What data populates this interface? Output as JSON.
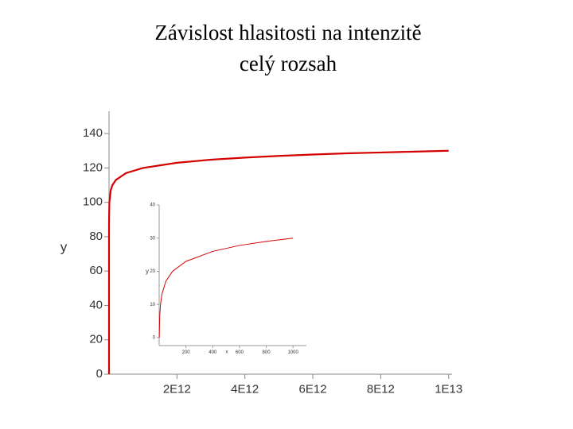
{
  "title_lines": [
    "Závislost hlasitosti na intenzitě",
    "celý rozsah"
  ],
  "chart_data": [
    {
      "type": "line",
      "y_label": "y",
      "color": "#d40000",
      "x": [
        1,
        100000000,
        1000000000,
        10000000000,
        50000000000,
        100000000000,
        200000000000,
        500000000000,
        1000000000000,
        2000000000000,
        3000000000000,
        4000000000000,
        5000000000000,
        6000000000000,
        7000000000000,
        8000000000000,
        9000000000000,
        10000000000000
      ],
      "values": [
        0,
        80,
        90,
        100,
        107,
        110,
        113,
        117,
        120,
        123,
        124.8,
        126,
        127,
        127.8,
        128.5,
        129,
        129.5,
        130
      ],
      "xlim": [
        0,
        10100000000000
      ],
      "ylim": [
        0,
        153
      ],
      "xticks": [
        {
          "value": 2000000000000,
          "label": "2E12"
        },
        {
          "value": 4000000000000,
          "label": "4E12"
        },
        {
          "value": 6000000000000,
          "label": "6E12"
        },
        {
          "value": 8000000000000,
          "label": "8E12"
        },
        {
          "value": 10000000000000,
          "label": "1E13"
        }
      ],
      "yticks": [
        0,
        20,
        40,
        60,
        80,
        100,
        120,
        140
      ]
    },
    {
      "type": "line",
      "x_label": "x",
      "y_label": "y",
      "color": "#d40000",
      "x": [
        1,
        2,
        5,
        10,
        20,
        50,
        100,
        200,
        400,
        600,
        800,
        1000
      ],
      "values": [
        0,
        3,
        7,
        10,
        13,
        17,
        20,
        23,
        26,
        27.8,
        29,
        30
      ],
      "xlim": [
        0,
        1100
      ],
      "ylim": [
        -2.4,
        40
      ],
      "xticks": [
        200,
        400,
        600,
        800,
        1000
      ],
      "yticks": [
        0,
        10,
        20,
        30,
        40
      ]
    }
  ]
}
